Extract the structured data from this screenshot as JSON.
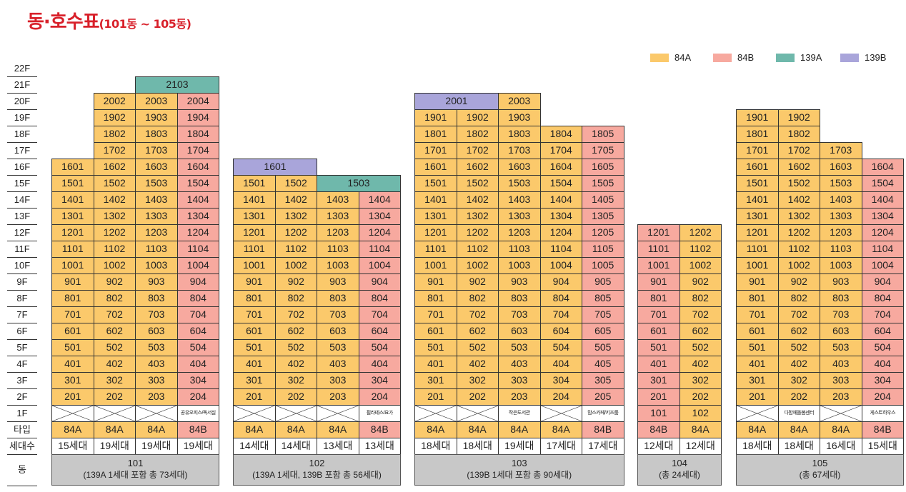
{
  "title": {
    "main": "동·호수표",
    "sub": "(101동 ~ 105동)"
  },
  "legend": [
    {
      "label": "84A",
      "color": "#fbc96b"
    },
    {
      "label": "84B",
      "color": "#f7a99f"
    },
    {
      "label": "139A",
      "color": "#6fb8ab"
    },
    {
      "label": "139B",
      "color": "#a9a5da"
    }
  ],
  "floor_labels": [
    "22F",
    "21F",
    "20F",
    "19F",
    "18F",
    "17F",
    "16F",
    "15F",
    "14F",
    "13F",
    "12F",
    "11F",
    "10F",
    "9F",
    "8F",
    "7F",
    "6F",
    "5F",
    "4F",
    "3F",
    "2F",
    "1F",
    "타입",
    "세대수",
    "동"
  ],
  "buildings": [
    {
      "name": "101",
      "note": "(139A 1세대 포함 총 73세대)",
      "lines": [
        {
          "type": "84A",
          "top_floor": 16,
          "ground": "x",
          "households": "15세대"
        },
        {
          "type": "84A",
          "top_floor": 20,
          "ground": "x",
          "households": "19세대"
        },
        {
          "type": "84A",
          "top_floor": 20,
          "ground": "x",
          "households": "19세대"
        },
        {
          "type": "84B",
          "top_floor": 20,
          "ground": "공유오피스/독서실",
          "households": "19세대"
        }
      ],
      "specials": [
        {
          "floor": 21,
          "label": "2103",
          "start": 2,
          "span": 2,
          "type": "139A"
        }
      ]
    },
    {
      "name": "102",
      "note": "(139A 1세대, 139B 포함 총 56세대)",
      "lines": [
        {
          "type": "84A",
          "top_floor": 15,
          "ground": "x",
          "households": "14세대"
        },
        {
          "type": "84A",
          "top_floor": 15,
          "ground": "x",
          "households": "14세대"
        },
        {
          "type": "84A",
          "top_floor": 14,
          "ground": "x",
          "households": "13세대"
        },
        {
          "type": "84B",
          "top_floor": 14,
          "ground": "필라테스/요가",
          "households": "13세대"
        }
      ],
      "specials": [
        {
          "floor": 16,
          "label": "1601",
          "start": 0,
          "span": 2,
          "type": "139B"
        },
        {
          "floor": 15,
          "label": "1503",
          "start": 2,
          "span": 2,
          "type": "139A"
        }
      ]
    },
    {
      "name": "103",
      "note": "(139B 1세대 포함 총 90세대)",
      "lines": [
        {
          "type": "84A",
          "top_floor": 19,
          "ground": "x",
          "households": "18세대"
        },
        {
          "type": "84A",
          "top_floor": 19,
          "ground": "x",
          "households": "18세대"
        },
        {
          "type": "84A",
          "top_floor": 20,
          "ground": "작은도서관",
          "households": "19세대"
        },
        {
          "type": "84A",
          "top_floor": 18,
          "ground": "x",
          "households": "17세대"
        },
        {
          "type": "84B",
          "top_floor": 18,
          "ground": "맘스카페/키즈룸",
          "households": "17세대"
        }
      ],
      "specials": [
        {
          "floor": 20,
          "label": "2001",
          "start": 0,
          "span": 2,
          "type": "139B"
        }
      ]
    },
    {
      "name": "104",
      "note": "(총 24세대)",
      "lines": [
        {
          "type": "84B",
          "top_floor": 12,
          "ground": "101",
          "households": "12세대"
        },
        {
          "type": "84A",
          "top_floor": 12,
          "ground": "102",
          "households": "12세대"
        }
      ],
      "specials": []
    },
    {
      "name": "105",
      "note": "(총 67세대)",
      "lines": [
        {
          "type": "84A",
          "top_floor": 19,
          "ground": "x",
          "households": "18세대"
        },
        {
          "type": "84A",
          "top_floor": 19,
          "ground": "다함께돌봄센터",
          "households": "18세대"
        },
        {
          "type": "84A",
          "top_floor": 17,
          "ground": "x",
          "households": "16세대"
        },
        {
          "type": "84B",
          "top_floor": 16,
          "ground": "게스트하우스",
          "households": "15세대"
        }
      ],
      "specials": []
    }
  ]
}
